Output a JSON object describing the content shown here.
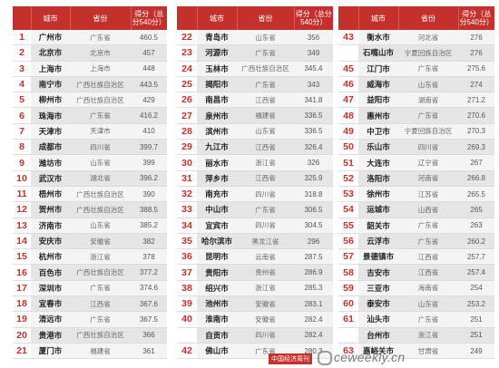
{
  "headers": {
    "rank": "",
    "city": "城市",
    "province": "省份",
    "score": "得分（总分540分）"
  },
  "panels": [
    {
      "rows": [
        {
          "rank": "1",
          "city": "广州市",
          "province": "广东省",
          "score": "460.5"
        },
        {
          "rank": "2",
          "city": "北京市",
          "province": "北京市",
          "score": "457"
        },
        {
          "rank": "3",
          "city": "上海市",
          "province": "上海市",
          "score": "448"
        },
        {
          "rank": "4",
          "city": "南宁市",
          "province": "广西壮族自治区",
          "score": "443.5"
        },
        {
          "rank": "5",
          "city": "柳州市",
          "province": "广西壮族自治区",
          "score": "429"
        },
        {
          "rank": "6",
          "city": "珠海市",
          "province": "广东省",
          "score": "416.2"
        },
        {
          "rank": "7",
          "city": "天津市",
          "province": "天津市",
          "score": "410"
        },
        {
          "rank": "8",
          "city": "成都市",
          "province": "四川省",
          "score": "399.7"
        },
        {
          "rank": "9",
          "city": "潍坊市",
          "province": "山东省",
          "score": "399"
        },
        {
          "rank": "10",
          "city": "武汉市",
          "province": "湖北省",
          "score": "396.2"
        },
        {
          "rank": "11",
          "city": "梧州市",
          "province": "广西壮族自治区",
          "score": "390"
        },
        {
          "rank": "12",
          "city": "贺州市",
          "province": "广西壮族自治区",
          "score": "388.5"
        },
        {
          "rank": "13",
          "city": "济南市",
          "province": "山东省",
          "score": "385.2"
        },
        {
          "rank": "14",
          "city": "安庆市",
          "province": "安徽省",
          "score": "382"
        },
        {
          "rank": "15",
          "city": "杭州市",
          "province": "浙江省",
          "score": "378"
        },
        {
          "rank": "16",
          "city": "百色市",
          "province": "广西壮族自治区",
          "score": "377.2"
        },
        {
          "rank": "17",
          "city": "深圳市",
          "province": "广东省",
          "score": "374.6"
        },
        {
          "rank": "18",
          "city": "宜春市",
          "province": "江西省",
          "score": "367.6"
        },
        {
          "rank": "19",
          "city": "清远市",
          "province": "广东省",
          "score": "367.5"
        },
        {
          "rank": "20",
          "city": "贵港市",
          "province": "广西壮族自治区",
          "score": "366"
        },
        {
          "rank": "21",
          "city": "厦门市",
          "province": "福建省",
          "score": "361"
        }
      ]
    },
    {
      "rows": [
        {
          "rank": "22",
          "city": "青岛市",
          "province": "山东省",
          "score": "356"
        },
        {
          "rank": "23",
          "city": "河源市",
          "province": "广东省",
          "score": "349"
        },
        {
          "rank": "24",
          "city": "玉林市",
          "province": "广西壮族自治区",
          "score": "345.4"
        },
        {
          "rank": "25",
          "city": "揭阳市",
          "province": "广东省",
          "score": "343"
        },
        {
          "rank": "26",
          "city": "南昌市",
          "province": "江西省",
          "score": "341.8"
        },
        {
          "rank": "27",
          "city": "泉州市",
          "province": "福建省",
          "score": "336.5"
        },
        {
          "rank": "28",
          "city": "滨州市",
          "province": "山东省",
          "score": "336.5"
        },
        {
          "rank": "29",
          "city": "九江市",
          "province": "江西省",
          "score": "326.4"
        },
        {
          "rank": "30",
          "city": "丽水市",
          "province": "浙江省",
          "score": "326"
        },
        {
          "rank": "31",
          "city": "萍乡市",
          "province": "江西省",
          "score": "325.9"
        },
        {
          "rank": "32",
          "city": "南充市",
          "province": "四川省",
          "score": "318.8"
        },
        {
          "rank": "33",
          "city": "中山市",
          "province": "广东省",
          "score": "306.5"
        },
        {
          "rank": "34",
          "city": "宜宾市",
          "province": "四川省",
          "score": "304.5"
        },
        {
          "rank": "35",
          "city": "哈尔滨市",
          "province": "黑龙江省",
          "score": "296"
        },
        {
          "rank": "36",
          "city": "昆明市",
          "province": "云南省",
          "score": "287.5"
        },
        {
          "rank": "37",
          "city": "贵阳市",
          "province": "贵州省",
          "score": "286.9"
        },
        {
          "rank": "38",
          "city": "绍兴市",
          "province": "浙江省",
          "score": "285.3"
        },
        {
          "rank": "39",
          "city": "池州市",
          "province": "安徽省",
          "score": "283.1"
        },
        {
          "rank": "40",
          "city": "淮南市",
          "province": "安徽省",
          "score": "282.4"
        },
        {
          "rank": "",
          "city": "自贡市",
          "province": "四川省",
          "score": "282.4"
        },
        {
          "rank": "42",
          "city": "佛山市",
          "province": "广东省",
          "score": "280.3"
        }
      ]
    },
    {
      "rows": [
        {
          "rank": "43",
          "city": "衡水市",
          "province": "河北省",
          "score": "276"
        },
        {
          "rank": "",
          "city": "石嘴山市",
          "province": "宁夏回族自治区",
          "score": "276"
        },
        {
          "rank": "45",
          "city": "江门市",
          "province": "广东省",
          "score": "275.6"
        },
        {
          "rank": "46",
          "city": "威海市",
          "province": "山东省",
          "score": "274"
        },
        {
          "rank": "47",
          "city": "益阳市",
          "province": "湖南省",
          "score": "271.2"
        },
        {
          "rank": "48",
          "city": "惠州市",
          "province": "广东省",
          "score": "270.6"
        },
        {
          "rank": "49",
          "city": "中卫市",
          "province": "宁夏回族自治区",
          "score": "270.3"
        },
        {
          "rank": "50",
          "city": "乐山市",
          "province": "四川省",
          "score": "269.3"
        },
        {
          "rank": "51",
          "city": "大连市",
          "province": "辽宁省",
          "score": "267"
        },
        {
          "rank": "52",
          "city": "洛阳市",
          "province": "河南省",
          "score": "266.8"
        },
        {
          "rank": "53",
          "city": "徐州市",
          "province": "江苏省",
          "score": "265.5"
        },
        {
          "rank": "54",
          "city": "运城市",
          "province": "山西省",
          "score": "265"
        },
        {
          "rank": "55",
          "city": "韶关市",
          "province": "广东省",
          "score": "263"
        },
        {
          "rank": "56",
          "city": "云浮市",
          "province": "广东省",
          "score": "260.2"
        },
        {
          "rank": "57",
          "city": "景德镇市",
          "province": "江西省",
          "score": "257.7"
        },
        {
          "rank": "58",
          "city": "吉安市",
          "province": "江西省",
          "score": "257.4"
        },
        {
          "rank": "59",
          "city": "三亚市",
          "province": "海南省",
          "score": "254"
        },
        {
          "rank": "60",
          "city": "泰安市",
          "province": "山东省",
          "score": "253.2"
        },
        {
          "rank": "61",
          "city": "汕头市",
          "province": "广东省",
          "score": "251"
        },
        {
          "rank": "",
          "city": "台州市",
          "province": "浙江省",
          "score": "251"
        },
        {
          "rank": "63",
          "city": "嘉峪关市",
          "province": "甘肃省",
          "score": "249"
        }
      ]
    }
  ],
  "badge": "中国经济周刊",
  "logo": "ceweekly.cn",
  "colors": {
    "accent": "#c4302b",
    "row_light": "#f4f4f4",
    "row_dark": "#e5e5e5"
  }
}
